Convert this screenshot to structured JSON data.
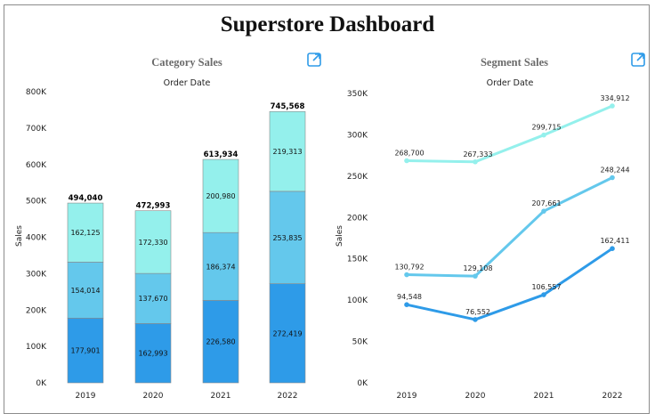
{
  "dashboard": {
    "title": "Superstore  Dashboard"
  },
  "colors": {
    "series_dark": "#2e9be8",
    "series_mid": "#64c8ec",
    "series_light": "#94f0ec"
  },
  "icons": {
    "expand": "external-link-icon"
  },
  "chart_data": [
    {
      "type": "bar",
      "stacked": true,
      "title": "Category  Sales",
      "subtitle": "Order Date",
      "xlabel": "",
      "ylabel": "Sales",
      "ylim": [
        0,
        800000
      ],
      "yticks": [
        "0K",
        "100K",
        "200K",
        "300K",
        "400K",
        "500K",
        "600K",
        "700K",
        "800K"
      ],
      "categories": [
        "2019",
        "2020",
        "2021",
        "2022"
      ],
      "series": [
        {
          "name": "series-1",
          "values": [
            177901,
            162993,
            226580,
            272419
          ],
          "labels": [
            "177,901",
            "162,993",
            "226,580",
            "272,419"
          ]
        },
        {
          "name": "series-2",
          "values": [
            154014,
            137670,
            186374,
            253835
          ],
          "labels": [
            "154,014",
            "137,670",
            "186,374",
            "253,835"
          ]
        },
        {
          "name": "series-3",
          "values": [
            162125,
            172330,
            200980,
            219313
          ],
          "labels": [
            "162,125",
            "172,330",
            "200,980",
            "219,313"
          ]
        }
      ],
      "totals": [
        "494,040",
        "472,993",
        "613,934",
        "745,568"
      ]
    },
    {
      "type": "line",
      "title": "Segment  Sales",
      "subtitle": "Order Date",
      "xlabel": "",
      "ylabel": "Sales",
      "ylim": [
        0,
        350000
      ],
      "yticks": [
        "0K",
        "50K",
        "100K",
        "150K",
        "200K",
        "250K",
        "300K",
        "350K"
      ],
      "categories": [
        "2019",
        "2020",
        "2021",
        "2022"
      ],
      "series": [
        {
          "name": "series-1",
          "values": [
            94548,
            76552,
            106557,
            162411
          ],
          "labels": [
            "94,548",
            "76,552",
            "106,557",
            "162,411"
          ]
        },
        {
          "name": "series-2",
          "values": [
            130792,
            129108,
            207661,
            248244
          ],
          "labels": [
            "130,792",
            "129,108",
            "207,661",
            "248,244"
          ]
        },
        {
          "name": "series-3",
          "values": [
            268700,
            267333,
            299715,
            334912
          ],
          "labels": [
            "268,700",
            "267,333",
            "299,715",
            "334,912"
          ]
        }
      ]
    }
  ]
}
